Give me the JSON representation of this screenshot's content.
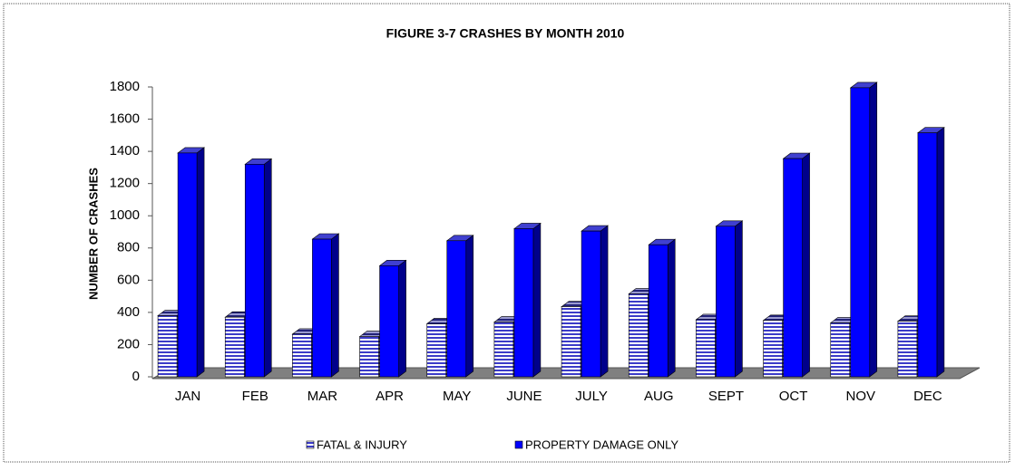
{
  "chart_data": {
    "type": "bar3d",
    "title": "FIGURE 3-7 CRASHES BY MONTH 2010",
    "y_label": "NUMBER OF CRASHES",
    "categories": [
      "JAN",
      "FEB",
      "MAR",
      "APR",
      "MAY",
      "JUNE",
      "JULY",
      "AUG",
      "SEPT",
      "OCT",
      "NOV",
      "DEC"
    ],
    "series": [
      {
        "name": "FATAL & INJURY",
        "color": "#3b3bc8",
        "values": [
          380,
          370,
          265,
          250,
          330,
          340,
          435,
          515,
          355,
          350,
          335,
          345
        ]
      },
      {
        "name": "PROPERTY DAMAGE ONLY",
        "color": "#0000ff",
        "values": [
          1390,
          1320,
          855,
          690,
          845,
          920,
          905,
          820,
          935,
          1355,
          1795,
          1515
        ]
      }
    ],
    "ylim": [
      0,
      1800
    ],
    "yticks": [
      0,
      200,
      400,
      600,
      800,
      1000,
      1200,
      1400,
      1600,
      1800
    ],
    "legend": "bottom"
  }
}
